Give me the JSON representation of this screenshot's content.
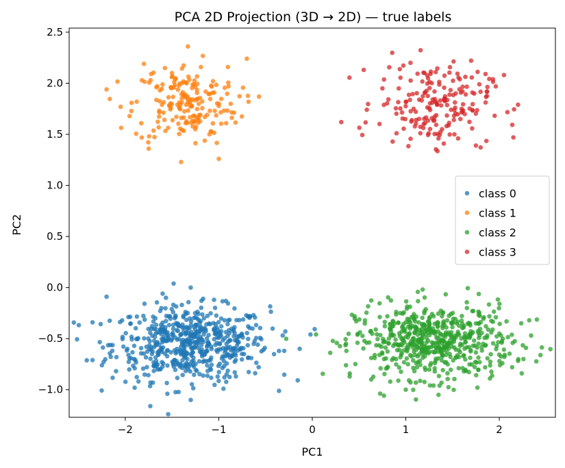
{
  "chart_data": {
    "type": "scatter",
    "title": "PCA 2D Projection (3D → 2D) — true labels",
    "xlabel": "PC1",
    "ylabel": "PC2",
    "xlim": [
      -2.6,
      2.6
    ],
    "ylim": [
      -1.27,
      2.54
    ],
    "xticks": [
      -2,
      -1,
      0,
      1,
      2
    ],
    "xtick_labels": [
      "−2",
      "−1",
      "0",
      "1",
      "2"
    ],
    "yticks": [
      -1.0,
      -0.5,
      0.0,
      0.5,
      1.0,
      1.5,
      2.0,
      2.5
    ],
    "ytick_labels": [
      "−1.0",
      "−0.5",
      "0.0",
      "0.5",
      "1.0",
      "1.5",
      "2.0",
      "2.5"
    ],
    "grid": false,
    "legend_placement": "center-right",
    "series": [
      {
        "name": "class 0",
        "color": "#1f77b4",
        "n_points": 600,
        "center": [
          -1.3,
          -0.55
        ],
        "spread": [
          0.42,
          0.18
        ],
        "points": [
          [
            -1.3,
            0.0
          ],
          [
            -2.2,
            -0.09
          ],
          [
            -1.6,
            -0.06
          ],
          [
            -2.35,
            -0.34
          ],
          [
            -2.35,
            -0.71
          ],
          [
            -0.02,
            -0.46
          ],
          [
            -1.3,
            -1.1
          ],
          [
            -1.55,
            -1.04
          ],
          [
            -1.9,
            -0.98
          ],
          [
            -2.25,
            -0.76
          ],
          [
            -0.3,
            -0.62
          ],
          [
            -0.95,
            -0.99
          ]
        ]
      },
      {
        "name": "class 1",
        "color": "#ff7f0e",
        "n_points": 200,
        "center": [
          -1.35,
          1.8
        ],
        "spread": [
          0.28,
          0.2
        ],
        "points": [
          [
            -1.33,
            2.36
          ],
          [
            -2.2,
            1.94
          ],
          [
            -1.75,
            1.36
          ],
          [
            -1.0,
            1.26
          ],
          [
            -0.7,
            2.24
          ],
          [
            -0.57,
            1.87
          ],
          [
            -1.8,
            2.19
          ],
          [
            -2.05,
            1.77
          ],
          [
            -1.5,
            2.1
          ],
          [
            -1.1,
            1.5
          ]
        ]
      },
      {
        "name": "class 2",
        "color": "#2ca02c",
        "n_points": 600,
        "center": [
          1.3,
          -0.53
        ],
        "spread": [
          0.42,
          0.18
        ],
        "points": [
          [
            1.18,
            -0.02
          ],
          [
            0.47,
            -0.33
          ],
          [
            0.4,
            -0.87
          ],
          [
            1.35,
            -1.05
          ],
          [
            2.32,
            -0.32
          ],
          [
            2.34,
            -0.47
          ],
          [
            2.24,
            -0.84
          ],
          [
            1.0,
            -1.0
          ],
          [
            0.63,
            -0.9
          ],
          [
            1.9,
            -0.89
          ],
          [
            0.36,
            -0.55
          ]
        ]
      },
      {
        "name": "class 3",
        "color": "#d62728",
        "n_points": 200,
        "center": [
          1.3,
          1.8
        ],
        "spread": [
          0.3,
          0.2
        ],
        "points": [
          [
            0.31,
            1.62
          ],
          [
            0.55,
            2.13
          ],
          [
            1.05,
            2.2
          ],
          [
            2.2,
            1.79
          ],
          [
            2.15,
            1.47
          ],
          [
            1.35,
            1.46
          ],
          [
            1.75,
            1.39
          ],
          [
            2.05,
            2.08
          ],
          [
            0.75,
            1.95
          ],
          [
            1.2,
            2.1
          ]
        ]
      }
    ]
  }
}
